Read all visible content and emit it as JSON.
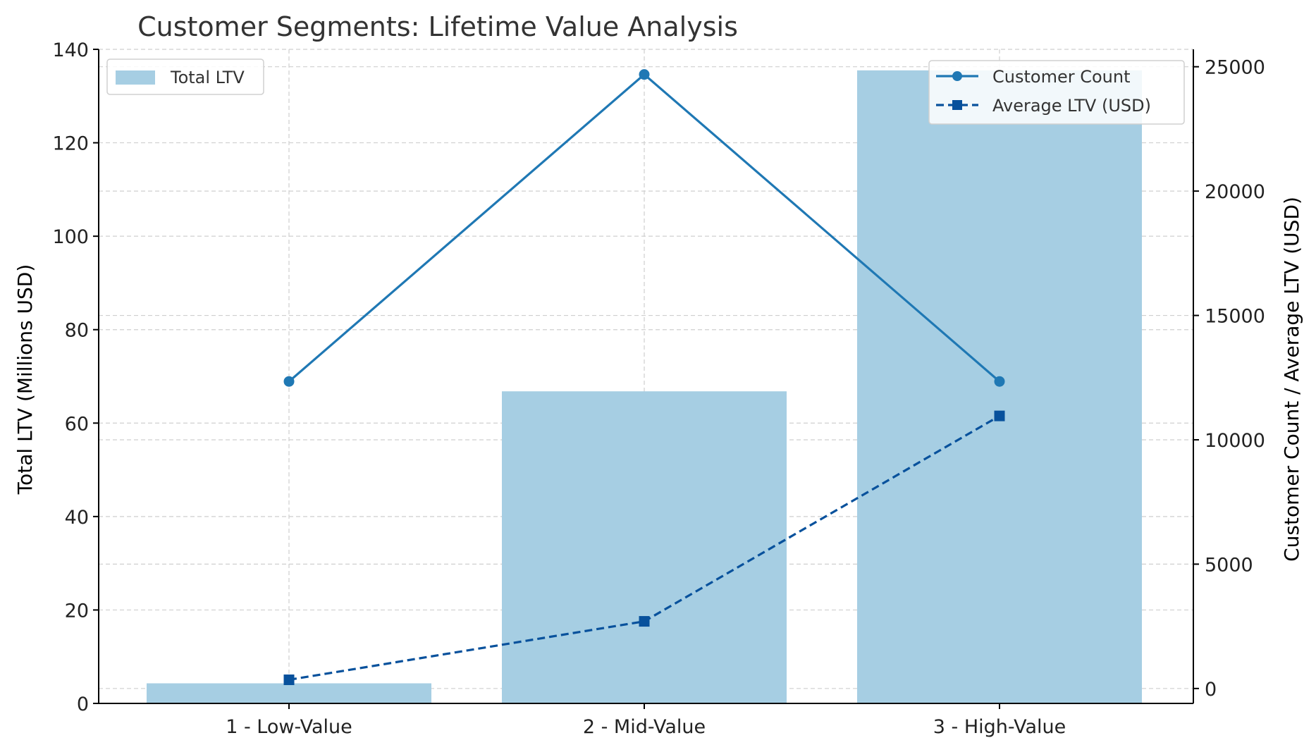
{
  "chart_data": {
    "type": "bar",
    "title": "Customer Segments: Lifetime Value Analysis",
    "categories": [
      "1 - Low-Value",
      "2 - Mid-Value",
      "3 - High-Value"
    ],
    "ylabel_left": "Total LTV (Millions USD)",
    "ylabel_right": "Customer Count / Average LTV (USD)",
    "ylim_left": [
      0,
      140
    ],
    "ylim_right": [
      -600,
      25700
    ],
    "yticks_left": [
      0,
      20,
      40,
      60,
      80,
      100,
      120,
      140
    ],
    "yticks_right": [
      0,
      5000,
      10000,
      15000,
      20000,
      25000
    ],
    "grid": true,
    "series": [
      {
        "name": "Total LTV",
        "kind": "bar",
        "axis": "left",
        "values": [
          4.3,
          66.8,
          135.5
        ],
        "color": "#a6cee3"
      },
      {
        "name": "Customer Count",
        "kind": "line",
        "axis": "right",
        "marker": "circle",
        "linestyle": "solid",
        "values": [
          12345,
          24690,
          12345
        ],
        "color": "#1f78b4"
      },
      {
        "name": "Average LTV (USD)",
        "kind": "line",
        "axis": "right",
        "marker": "square",
        "linestyle": "dashed",
        "values": [
          350,
          2700,
          10960
        ],
        "color": "#08519c"
      }
    ],
    "legend_left": {
      "placement": "top-left",
      "items": [
        "Total LTV"
      ]
    },
    "legend_right": {
      "placement": "top-right",
      "items": [
        "Customer Count",
        "Average LTV (USD)"
      ]
    }
  }
}
